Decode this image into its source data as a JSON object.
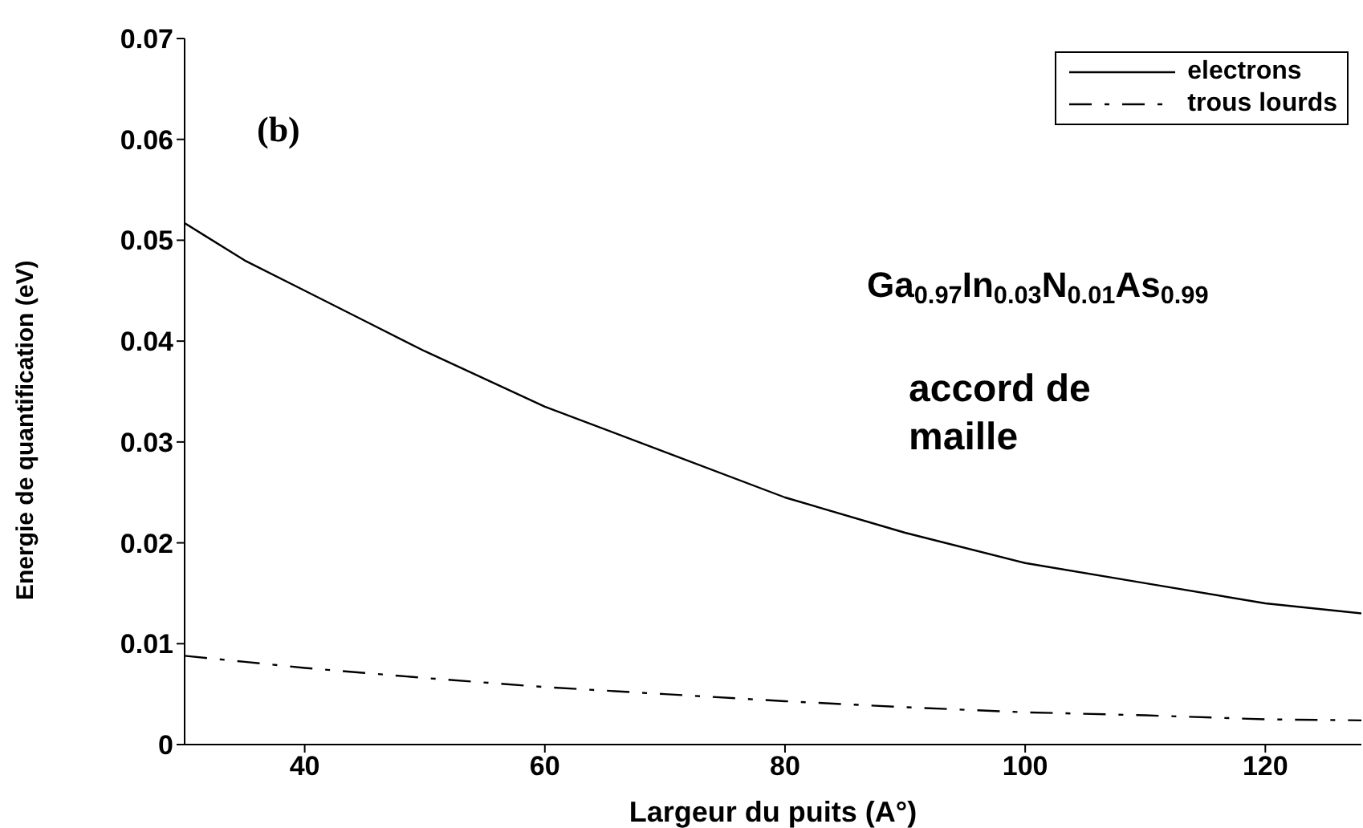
{
  "chart_data": {
    "type": "line",
    "xlabel": "Largeur du puits (A°)",
    "ylabel": "Energie de quantification (eV)",
    "x": [
      30,
      35,
      40,
      45,
      50,
      60,
      70,
      80,
      90,
      100,
      110,
      120,
      128
    ],
    "series": [
      {
        "name": "electrons",
        "color": "#000000",
        "line_style": "solid",
        "values": [
          0.0517,
          0.048,
          0.045,
          0.042,
          0.039,
          0.0335,
          0.029,
          0.0245,
          0.021,
          0.018,
          0.016,
          0.014,
          0.013
        ]
      },
      {
        "name": "trous lourds",
        "color": "#000000",
        "line_style": "dashed",
        "values": [
          0.0088,
          0.0082,
          0.0076,
          0.0071,
          0.0066,
          0.0057,
          0.005,
          0.0043,
          0.0037,
          0.0032,
          0.0029,
          0.0025,
          0.0024
        ]
      }
    ],
    "xlim": [
      30,
      128
    ],
    "xticks": [
      40,
      60,
      80,
      100,
      120
    ],
    "ylim": [
      0,
      0.07
    ],
    "yticks": [
      0,
      0.01,
      0.02,
      0.03,
      0.04,
      0.05,
      0.06,
      0.07
    ],
    "grid": false,
    "legend": "top right",
    "marker": "none",
    "annotations": [
      "(b)",
      "Ga$_{0.97}$In$_{0.03}$N$_{0.01}$As$_{0.99}$",
      "accord de maille"
    ]
  }
}
